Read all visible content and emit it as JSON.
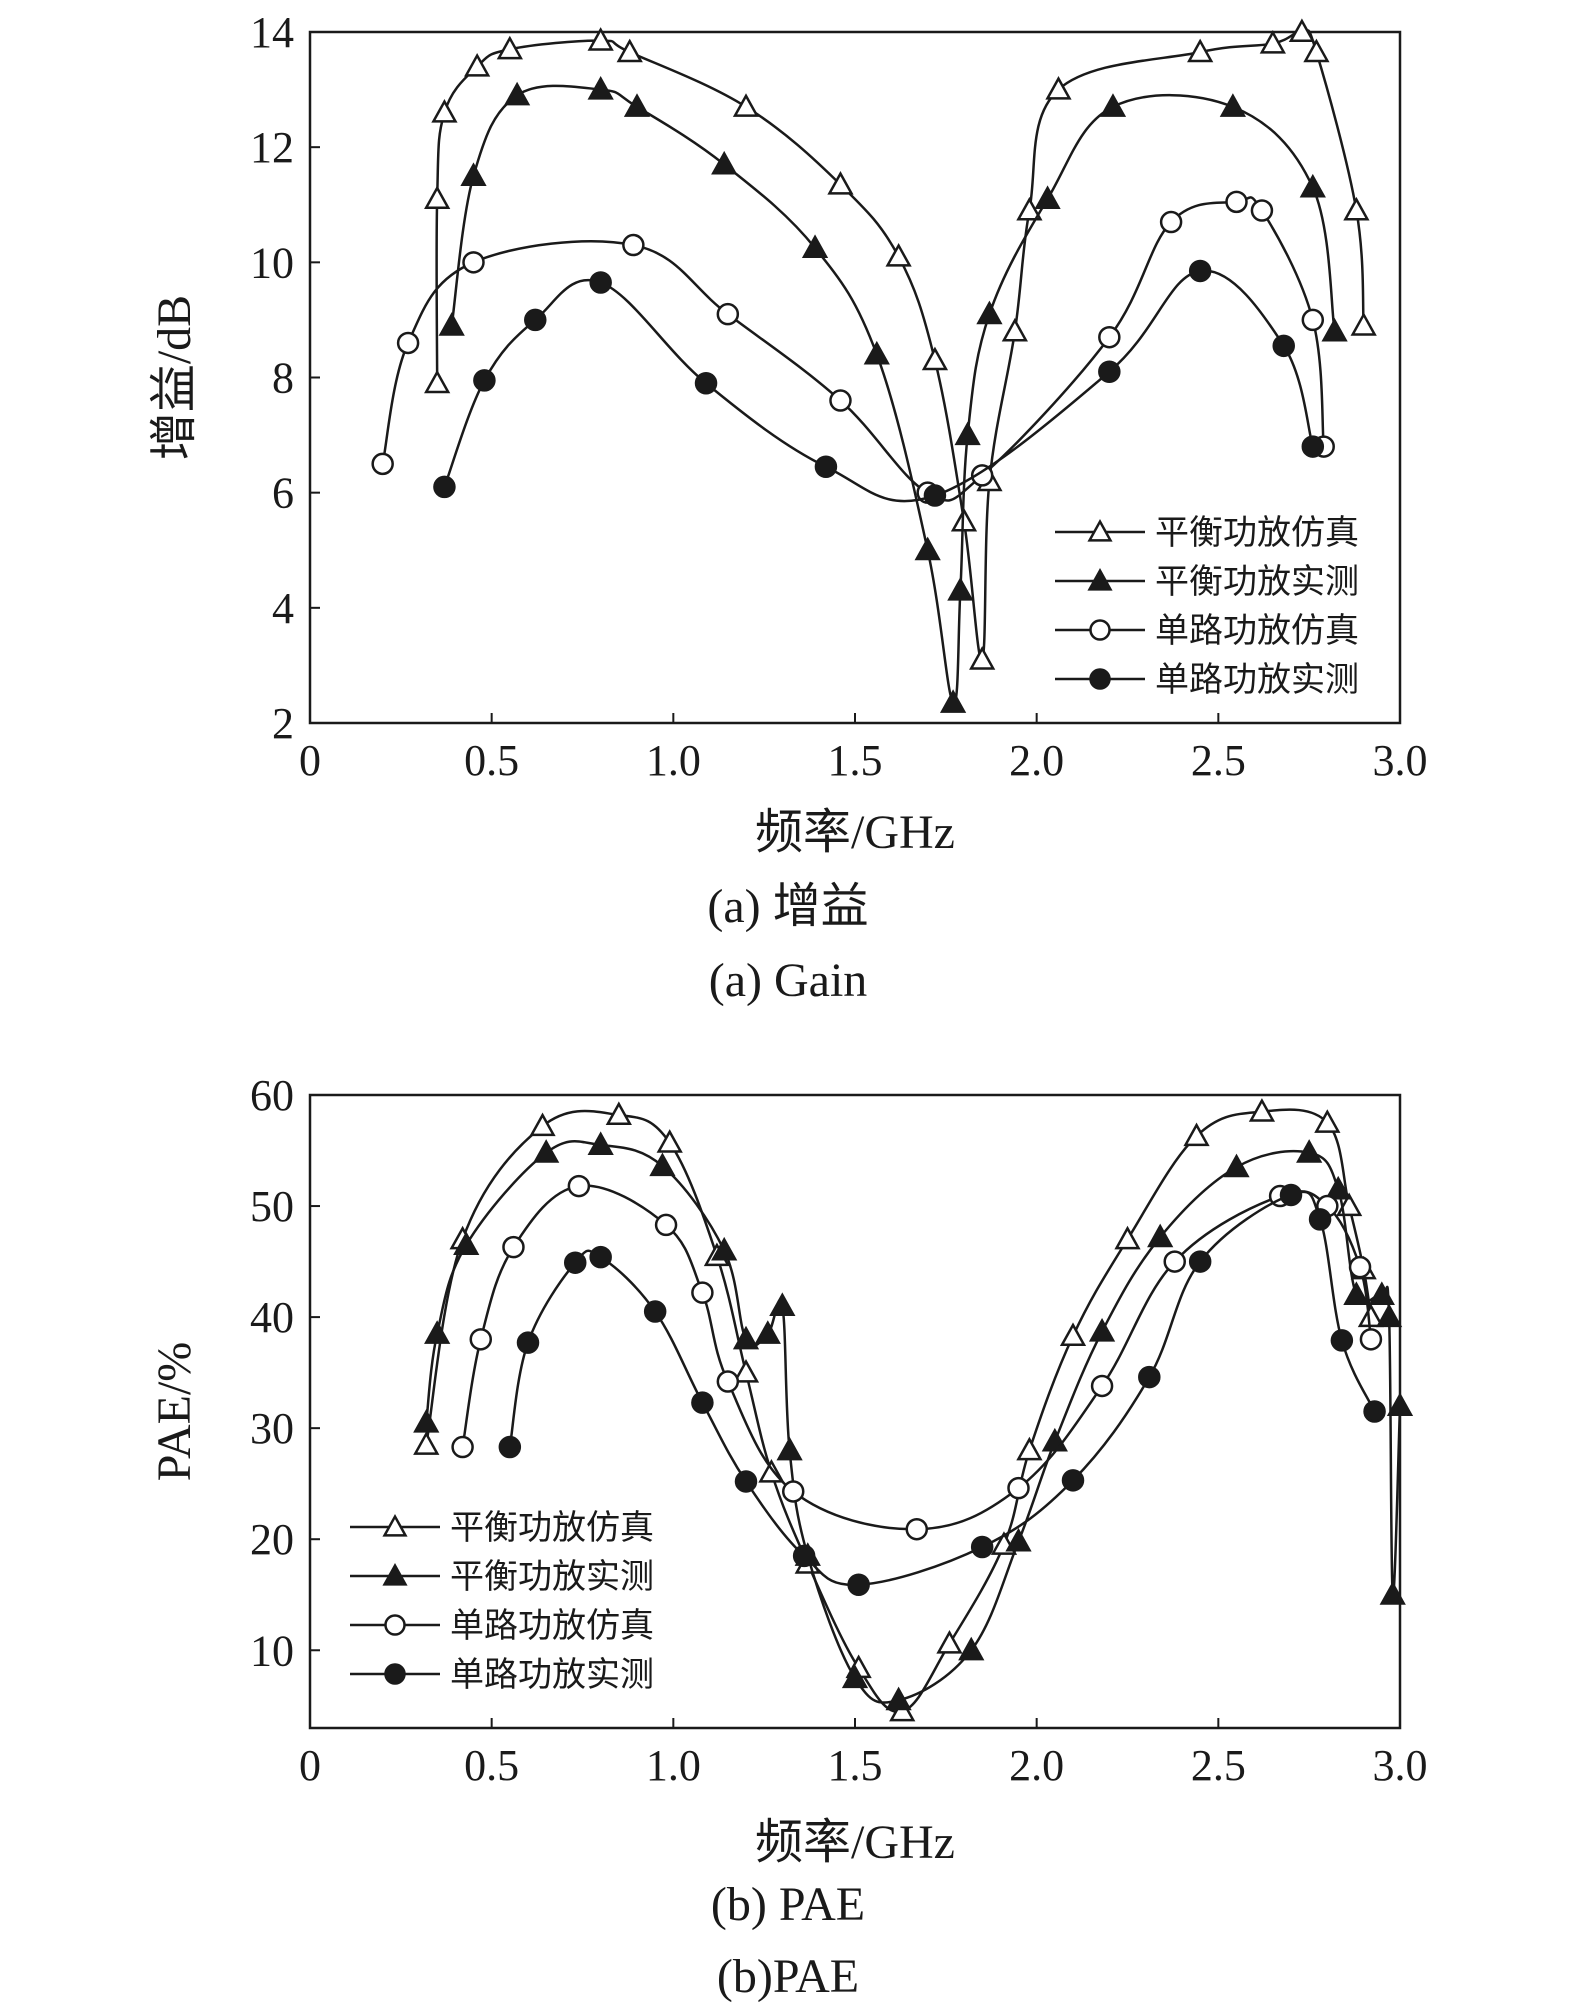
{
  "captions": [
    {
      "cn": "(a) 增益",
      "en": "(a) Gain"
    },
    {
      "cn": "(b) PAE",
      "en": "(b)PAE"
    }
  ],
  "chart_data": [
    {
      "type": "line",
      "xlabel": "频率/GHz",
      "ylabel": "增益/dB",
      "xlim": [
        0,
        3.0
      ],
      "ylim": [
        2,
        14
      ],
      "xticks": [
        0,
        0.5,
        1.0,
        1.5,
        2.0,
        2.5,
        3.0
      ],
      "xtick_labels": [
        "0",
        "0.5",
        "1.0",
        "1.5",
        "2.0",
        "2.5",
        "3.0"
      ],
      "yticks": [
        2,
        4,
        6,
        8,
        10,
        12,
        14
      ],
      "ytick_labels": [
        "2",
        "4",
        "6",
        "8",
        "10",
        "12",
        "14"
      ],
      "legend_position": "bottom-right",
      "series": [
        {
          "name": "平衡功放仿真",
          "marker": "triangle-open",
          "points": [
            [
              0.35,
              7.9
            ],
            [
              0.35,
              11.1
            ],
            [
              0.37,
              12.6
            ],
            [
              0.46,
              13.4
            ],
            [
              0.55,
              13.7
            ],
            [
              0.8,
              13.85
            ],
            [
              0.88,
              13.65
            ],
            [
              1.2,
              12.7
            ],
            [
              1.46,
              11.35
            ],
            [
              1.62,
              10.1
            ],
            [
              1.72,
              8.3
            ],
            [
              1.8,
              5.5
            ],
            [
              1.85,
              3.1
            ],
            [
              1.87,
              6.2
            ],
            [
              1.94,
              8.8
            ],
            [
              1.98,
              10.9
            ],
            [
              2.06,
              13.0
            ],
            [
              2.45,
              13.65
            ],
            [
              2.65,
              13.8
            ],
            [
              2.73,
              14.0
            ],
            [
              2.77,
              13.65
            ],
            [
              2.88,
              10.9
            ],
            [
              2.9,
              8.9
            ]
          ]
        },
        {
          "name": "平衡功放实测",
          "marker": "triangle-filled",
          "points": [
            [
              0.39,
              8.9
            ],
            [
              0.45,
              11.5
            ],
            [
              0.57,
              12.9
            ],
            [
              0.8,
              13.0
            ],
            [
              0.9,
              12.7
            ],
            [
              1.14,
              11.7
            ],
            [
              1.39,
              10.25
            ],
            [
              1.56,
              8.4
            ],
            [
              1.7,
              5.0
            ],
            [
              1.77,
              2.35
            ],
            [
              1.79,
              4.3
            ],
            [
              1.81,
              7.0
            ],
            [
              1.87,
              9.1
            ],
            [
              2.03,
              11.1
            ],
            [
              2.21,
              12.7
            ],
            [
              2.54,
              12.7
            ],
            [
              2.76,
              11.3
            ],
            [
              2.82,
              8.8
            ]
          ]
        },
        {
          "name": "单路功放仿真",
          "marker": "circle-open",
          "points": [
            [
              0.2,
              6.5
            ],
            [
              0.27,
              8.6
            ],
            [
              0.45,
              10.0
            ],
            [
              0.89,
              10.3
            ],
            [
              1.15,
              9.1
            ],
            [
              1.46,
              7.6
            ],
            [
              1.7,
              6.0
            ],
            [
              1.85,
              6.3
            ],
            [
              2.2,
              8.7
            ],
            [
              2.37,
              10.7
            ],
            [
              2.55,
              11.05
            ],
            [
              2.62,
              10.9
            ],
            [
              2.76,
              9.0
            ],
            [
              2.79,
              6.8
            ]
          ]
        },
        {
          "name": "单路功放实测",
          "marker": "circle-filled",
          "points": [
            [
              0.37,
              6.1
            ],
            [
              0.48,
              7.95
            ],
            [
              0.62,
              9.0
            ],
            [
              0.8,
              9.65
            ],
            [
              1.09,
              7.9
            ],
            [
              1.42,
              6.45
            ],
            [
              1.72,
              5.95
            ],
            [
              2.2,
              8.1
            ],
            [
              2.45,
              9.85
            ],
            [
              2.68,
              8.55
            ],
            [
              2.76,
              6.8
            ]
          ]
        }
      ]
    },
    {
      "type": "line",
      "xlabel": "频率/GHz",
      "ylabel": "PAE/%",
      "xlim": [
        0,
        3.0
      ],
      "ylim": [
        3,
        60
      ],
      "xticks": [
        0,
        0.5,
        1.0,
        1.5,
        2.0,
        2.5,
        3.0
      ],
      "xtick_labels": [
        "0",
        "0.5",
        "1.0",
        "1.5",
        "2.0",
        "2.5",
        "3.0"
      ],
      "yticks": [
        10,
        20,
        30,
        40,
        50,
        60
      ],
      "ytick_labels": [
        "10",
        "20",
        "30",
        "40",
        "50",
        "60"
      ],
      "legend_position": "bottom-left",
      "series": [
        {
          "name": "平衡功放仿真",
          "marker": "triangle-open",
          "points": [
            [
              0.32,
              28.5
            ],
            [
              0.42,
              47.0
            ],
            [
              0.64,
              57.2
            ],
            [
              0.85,
              58.2
            ],
            [
              0.99,
              55.7
            ],
            [
              1.12,
              45.5
            ],
            [
              1.2,
              35.0
            ],
            [
              1.27,
              26.0
            ],
            [
              1.37,
              17.8
            ],
            [
              1.51,
              8.4
            ],
            [
              1.63,
              4.5
            ],
            [
              1.76,
              10.6
            ],
            [
              1.91,
              19.5
            ],
            [
              1.98,
              28.0
            ],
            [
              2.1,
              38.3
            ],
            [
              2.25,
              47.0
            ],
            [
              2.44,
              56.3
            ],
            [
              2.62,
              58.5
            ],
            [
              2.8,
              57.5
            ],
            [
              2.86,
              50.0
            ],
            [
              2.9,
              44.3
            ],
            [
              2.92,
              40.0
            ]
          ]
        },
        {
          "name": "平衡功放实测",
          "marker": "triangle-filled",
          "points": [
            [
              0.32,
              30.5
            ],
            [
              0.35,
              38.5
            ],
            [
              0.43,
              46.5
            ],
            [
              0.65,
              54.8
            ],
            [
              0.8,
              55.5
            ],
            [
              0.97,
              53.6
            ],
            [
              1.14,
              46.0
            ],
            [
              1.2,
              38.0
            ],
            [
              1.26,
              38.5
            ],
            [
              1.3,
              41.0
            ],
            [
              1.32,
              28.0
            ],
            [
              1.37,
              18.5
            ],
            [
              1.5,
              7.5
            ],
            [
              1.62,
              5.5
            ],
            [
              1.82,
              10.0
            ],
            [
              1.95,
              19.8
            ],
            [
              2.05,
              28.8
            ],
            [
              2.18,
              38.7
            ],
            [
              2.34,
              47.2
            ],
            [
              2.55,
              53.5
            ],
            [
              2.75,
              54.8
            ],
            [
              2.83,
              51.5
            ],
            [
              2.88,
              42.0
            ],
            [
              2.95,
              42.0
            ],
            [
              2.97,
              40.0
            ],
            [
              2.98,
              15.0
            ],
            [
              3.0,
              32.0
            ]
          ]
        },
        {
          "name": "单路功放仿真",
          "marker": "circle-open",
          "points": [
            [
              0.42,
              28.3
            ],
            [
              0.47,
              38.0
            ],
            [
              0.56,
              46.3
            ],
            [
              0.74,
              51.8
            ],
            [
              0.98,
              48.3
            ],
            [
              1.08,
              42.2
            ],
            [
              1.15,
              34.2
            ],
            [
              1.33,
              24.3
            ],
            [
              1.67,
              20.9
            ],
            [
              1.95,
              24.6
            ],
            [
              2.18,
              33.8
            ],
            [
              2.38,
              45.0
            ],
            [
              2.67,
              50.9
            ],
            [
              2.8,
              50.0
            ],
            [
              2.89,
              44.5
            ],
            [
              2.92,
              38.0
            ]
          ]
        },
        {
          "name": "单路功放实测",
          "marker": "circle-filled",
          "points": [
            [
              0.55,
              28.3
            ],
            [
              0.6,
              37.7
            ],
            [
              0.73,
              44.9
            ],
            [
              0.8,
              45.4
            ],
            [
              0.95,
              40.5
            ],
            [
              1.08,
              32.3
            ],
            [
              1.2,
              25.2
            ],
            [
              1.36,
              18.5
            ],
            [
              1.51,
              15.9
            ],
            [
              1.85,
              19.3
            ],
            [
              2.1,
              25.3
            ],
            [
              2.31,
              34.6
            ],
            [
              2.45,
              45.0
            ],
            [
              2.7,
              51.0
            ],
            [
              2.78,
              48.8
            ],
            [
              2.84,
              37.9
            ],
            [
              2.93,
              31.5
            ]
          ]
        }
      ]
    }
  ]
}
